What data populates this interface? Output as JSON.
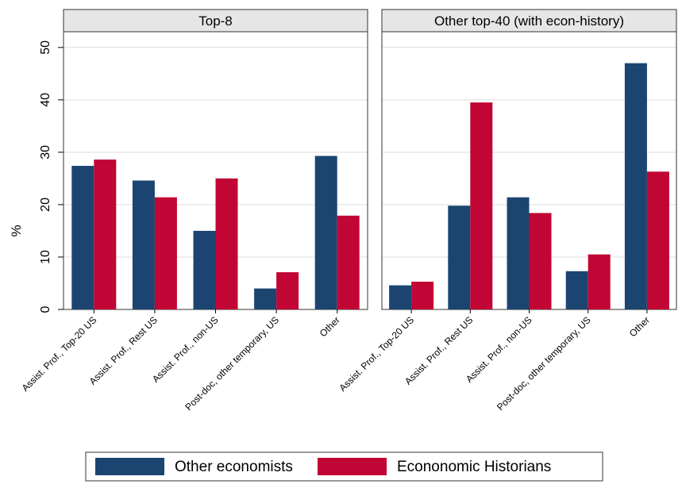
{
  "chart_data": {
    "type": "bar",
    "ylabel": "%",
    "ylim": [
      0,
      53
    ],
    "yticks": [
      0,
      10,
      20,
      30,
      40,
      50
    ],
    "grid": true,
    "legend_position": "bottom",
    "colors": {
      "series_0": "#1b4570",
      "series_1": "#c10534"
    },
    "panels": [
      {
        "title": "Top-8",
        "categories": [
          "Assist. Prof., Top-20 US",
          "Assist. Prof., Rest US",
          "Assist. Prof., non-US",
          "Post-doc, other temporary, US",
          "Other"
        ],
        "series": [
          {
            "name": "Other economists",
            "values": [
              27.4,
              24.6,
              15.0,
              4.0,
              29.3
            ]
          },
          {
            "name": "Econonomic Historians",
            "values": [
              28.6,
              21.4,
              25.0,
              7.1,
              17.9
            ]
          }
        ]
      },
      {
        "title": "Other top-40 (with econ-history)",
        "categories": [
          "Assist. Prof., Top-20 US",
          "Assist. Prof., Rest US",
          "Assist. Prof., non-US",
          "Post-doc, other temporary, US",
          "Other"
        ],
        "series": [
          {
            "name": "Other economists",
            "values": [
              4.6,
              19.8,
              21.4,
              7.3,
              47.0
            ]
          },
          {
            "name": "Econonomic Historians",
            "values": [
              5.3,
              39.5,
              18.4,
              10.5,
              26.3
            ]
          }
        ]
      }
    ],
    "legend": [
      "Other economists",
      "Econonomic Historians"
    ]
  }
}
